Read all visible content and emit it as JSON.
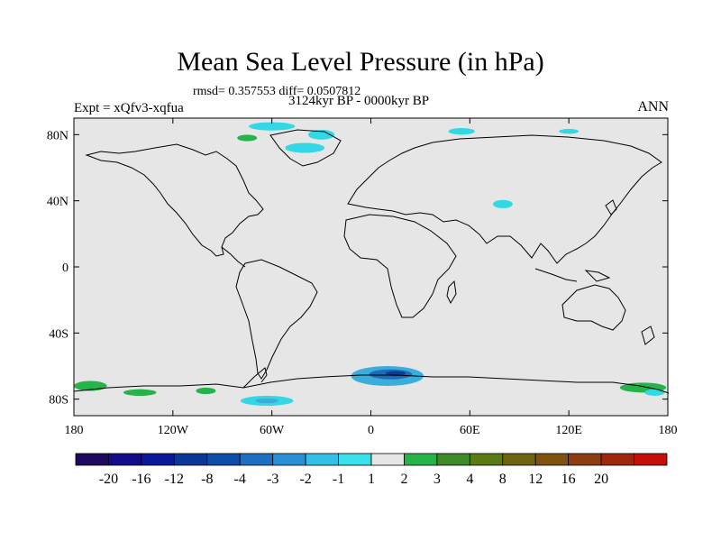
{
  "title": "Mean Sea Level Pressure (in hPa)",
  "stats_line": "rmsd= 0.357553 diff= 0.0507812",
  "period": "3124kyr BP - 0000kyr BP",
  "experiment": "Expt = xQfv3-xqfua",
  "season": "ANN",
  "map": {
    "background_color": "#e6e6e6",
    "lat_ticks": [
      {
        "value": 80,
        "label": "80N"
      },
      {
        "value": 40,
        "label": "40N"
      },
      {
        "value": 0,
        "label": "0"
      },
      {
        "value": -40,
        "label": "40S"
      },
      {
        "value": -80,
        "label": "80S"
      }
    ],
    "lon_ticks": [
      {
        "value": -180,
        "label": "180"
      },
      {
        "value": -120,
        "label": "120W"
      },
      {
        "value": -60,
        "label": "60W"
      },
      {
        "value": 0,
        "label": "0"
      },
      {
        "value": 60,
        "label": "60E"
      },
      {
        "value": 120,
        "label": "120E"
      },
      {
        "value": 180,
        "label": "180"
      }
    ],
    "anomalies": [
      {
        "lon": 10,
        "lat": -66,
        "rlon": 22,
        "rlat": 6,
        "color": "#3aaedb"
      },
      {
        "lon": 12,
        "lat": -65,
        "rlon": 13,
        "rlat": 3,
        "color": "#1a6bb8"
      },
      {
        "lon": 15,
        "lat": -64.5,
        "rlon": 6,
        "rlat": 1.5,
        "color": "#0a3d8f"
      },
      {
        "lon": -63,
        "lat": -81,
        "rlon": 16,
        "rlat": 3,
        "color": "#33d8e6"
      },
      {
        "lon": -63,
        "lat": -81,
        "rlon": 7,
        "rlat": 1.5,
        "color": "#3aaedb"
      },
      {
        "lon": -170,
        "lat": -72,
        "rlon": 10,
        "rlat": 3,
        "color": "#25b34a"
      },
      {
        "lon": -140,
        "lat": -76,
        "rlon": 10,
        "rlat": 2,
        "color": "#25b34a"
      },
      {
        "lon": -100,
        "lat": -75,
        "rlon": 6,
        "rlat": 2,
        "color": "#25b34a"
      },
      {
        "lon": 165,
        "lat": -73,
        "rlon": 14,
        "rlat": 3,
        "color": "#25b34a"
      },
      {
        "lon": 172,
        "lat": -76,
        "rlon": 6,
        "rlat": 2,
        "color": "#33d8e6"
      },
      {
        "lon": -40,
        "lat": 72,
        "rlon": 12,
        "rlat": 3,
        "color": "#33d8e6"
      },
      {
        "lon": -60,
        "lat": 85,
        "rlon": 14,
        "rlat": 2.5,
        "color": "#33d8e6"
      },
      {
        "lon": -30,
        "lat": 80,
        "rlon": 8,
        "rlat": 3,
        "color": "#33d8e6"
      },
      {
        "lon": -75,
        "lat": 78,
        "rlon": 6,
        "rlat": 2,
        "color": "#25b34a"
      },
      {
        "lon": 80,
        "lat": 38,
        "rlon": 6,
        "rlat": 2.5,
        "color": "#33d8e6"
      },
      {
        "lon": 55,
        "lat": 82,
        "rlon": 8,
        "rlat": 2,
        "color": "#33d8e6"
      },
      {
        "lon": 120,
        "lat": 82,
        "rlon": 6,
        "rlat": 1.5,
        "color": "#33d8e6"
      }
    ]
  },
  "colorbar": {
    "labels": [
      "-20",
      "-16",
      "-12",
      "-8",
      "-4",
      "-3",
      "-2",
      "-1",
      "1",
      "2",
      "3",
      "4",
      "8",
      "12",
      "16",
      "20"
    ],
    "colors": [
      "#1d0a5e",
      "#120c8a",
      "#0a1a96",
      "#0b3896",
      "#0f4ea8",
      "#1e6ec2",
      "#2b8fd6",
      "#33c0e6",
      "#3ae0ea",
      "#e6e6e6",
      "#25b34a",
      "#3e8a27",
      "#5a7a16",
      "#6e6410",
      "#7f5210",
      "#8c3e10",
      "#a0260e",
      "#c50f0a"
    ]
  }
}
